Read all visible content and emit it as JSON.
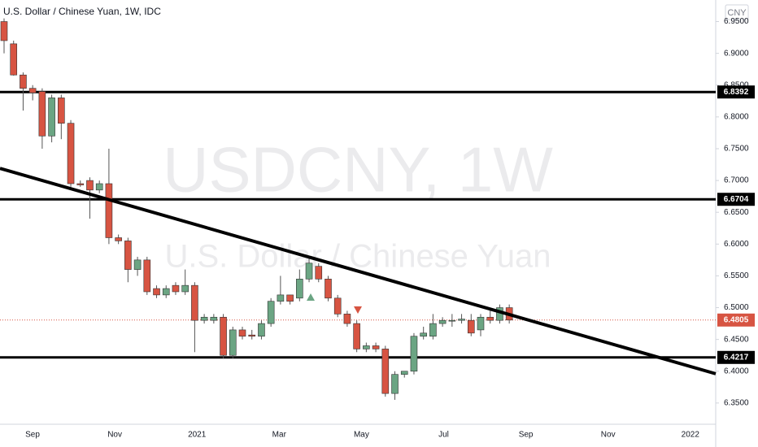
{
  "chart_data": {
    "type": "candlestick",
    "title": "U.S. Dollar / Chinese Yuan, 1W, IDC",
    "currency": "CNY",
    "watermark": "USDCNY, 1W",
    "watermark_subtitle": "U.S. Dollar / Chinese Yuan",
    "x_labels": [
      "Sep",
      "Nov",
      "2021",
      "Mar",
      "May",
      "Jul",
      "Sep",
      "Nov",
      "2022"
    ],
    "up_color": "#6ba583",
    "down_color": "#d75442",
    "series": [
      {
        "name": "open",
        "values": [
          6.95,
          6.915,
          6.866,
          6.845,
          6.84,
          6.77,
          6.83,
          6.79,
          6.695,
          6.7,
          6.685,
          6.695,
          6.61,
          6.605,
          6.56,
          6.575,
          6.53,
          6.52,
          6.535,
          6.525,
          6.535,
          6.48,
          6.48,
          6.485,
          6.425,
          6.465,
          6.457,
          6.455,
          6.475,
          6.51,
          6.52,
          6.515,
          6.545,
          6.565,
          6.545,
          6.515,
          6.49,
          6.475,
          6.435,
          6.44,
          6.435,
          6.365,
          6.395,
          6.4,
          6.455,
          6.455,
          6.475,
          6.48,
          6.48,
          6.48,
          6.465,
          6.485,
          6.48,
          6.5
        ]
      },
      {
        "name": "high",
        "values": [
          6.955,
          6.92,
          6.87,
          6.85,
          6.845,
          6.835,
          6.835,
          6.795,
          6.7,
          6.705,
          6.7,
          6.75,
          6.615,
          6.61,
          6.58,
          6.58,
          6.535,
          6.535,
          6.54,
          6.56,
          6.54,
          6.49,
          6.49,
          6.49,
          6.47,
          6.47,
          6.465,
          6.48,
          6.515,
          6.55,
          6.52,
          6.56,
          6.58,
          6.57,
          6.55,
          6.52,
          6.495,
          6.48,
          6.445,
          6.445,
          6.44,
          6.4,
          6.4,
          6.46,
          6.47,
          6.49,
          6.485,
          6.49,
          6.49,
          6.49,
          6.49,
          6.5,
          6.505,
          6.505
        ]
      },
      {
        "name": "low",
        "values": [
          6.9,
          6.865,
          6.81,
          6.826,
          6.75,
          6.76,
          6.765,
          6.69,
          6.69,
          6.64,
          6.68,
          6.6,
          6.6,
          6.54,
          6.55,
          6.52,
          6.515,
          6.515,
          6.52,
          6.52,
          6.43,
          6.475,
          6.475,
          6.42,
          6.42,
          6.45,
          6.45,
          6.45,
          6.47,
          6.505,
          6.505,
          6.51,
          6.54,
          6.54,
          6.51,
          6.485,
          6.47,
          6.43,
          6.43,
          6.43,
          6.36,
          6.355,
          6.39,
          6.395,
          6.45,
          6.45,
          6.47,
          6.47,
          6.475,
          6.455,
          6.455,
          6.475,
          6.475,
          6.475
        ]
      },
      {
        "name": "close",
        "values": [
          6.92,
          6.866,
          6.845,
          6.838,
          6.77,
          6.83,
          6.79,
          6.695,
          6.693,
          6.685,
          6.695,
          6.61,
          6.605,
          6.56,
          6.575,
          6.525,
          6.52,
          6.53,
          6.525,
          6.535,
          6.48,
          6.485,
          6.485,
          6.425,
          6.465,
          6.455,
          6.455,
          6.475,
          6.51,
          6.52,
          6.51,
          6.545,
          6.57,
          6.545,
          6.515,
          6.49,
          6.475,
          6.435,
          6.44,
          6.435,
          6.365,
          6.395,
          6.4,
          6.455,
          6.46,
          6.475,
          6.48,
          6.48,
          6.482,
          6.46,
          6.485,
          6.48,
          6.5,
          6.4805
        ]
      }
    ],
    "ylim": [
      6.3166,
      6.9839
    ],
    "yticks": [
      {
        "value": 6.95,
        "label": "6.9500"
      },
      {
        "value": 6.9,
        "label": "6.9000"
      },
      {
        "value": 6.85,
        "label": "6.8500"
      },
      {
        "value": 6.8,
        "label": "6.8000"
      },
      {
        "value": 6.75,
        "label": "6.7500"
      },
      {
        "value": 6.7,
        "label": "6.7000"
      },
      {
        "value": 6.65,
        "label": "6.6500"
      },
      {
        "value": 6.6,
        "label": "6.6000"
      },
      {
        "value": 6.55,
        "label": "6.5500"
      },
      {
        "value": 6.5,
        "label": "6.5000"
      },
      {
        "value": 6.45,
        "label": "6.4500"
      },
      {
        "value": 6.4,
        "label": "6.4000"
      },
      {
        "value": 6.35,
        "label": "6.3500"
      }
    ],
    "levels": [
      {
        "value": 6.8392,
        "label": "6.8392"
      },
      {
        "value": 6.6704,
        "label": "6.6704"
      },
      {
        "value": 6.4217,
        "label": "6.4217"
      }
    ],
    "last_price": {
      "value": 6.4805,
      "label": "6.4805"
    },
    "trendline": [
      6.719,
      6.396
    ]
  }
}
